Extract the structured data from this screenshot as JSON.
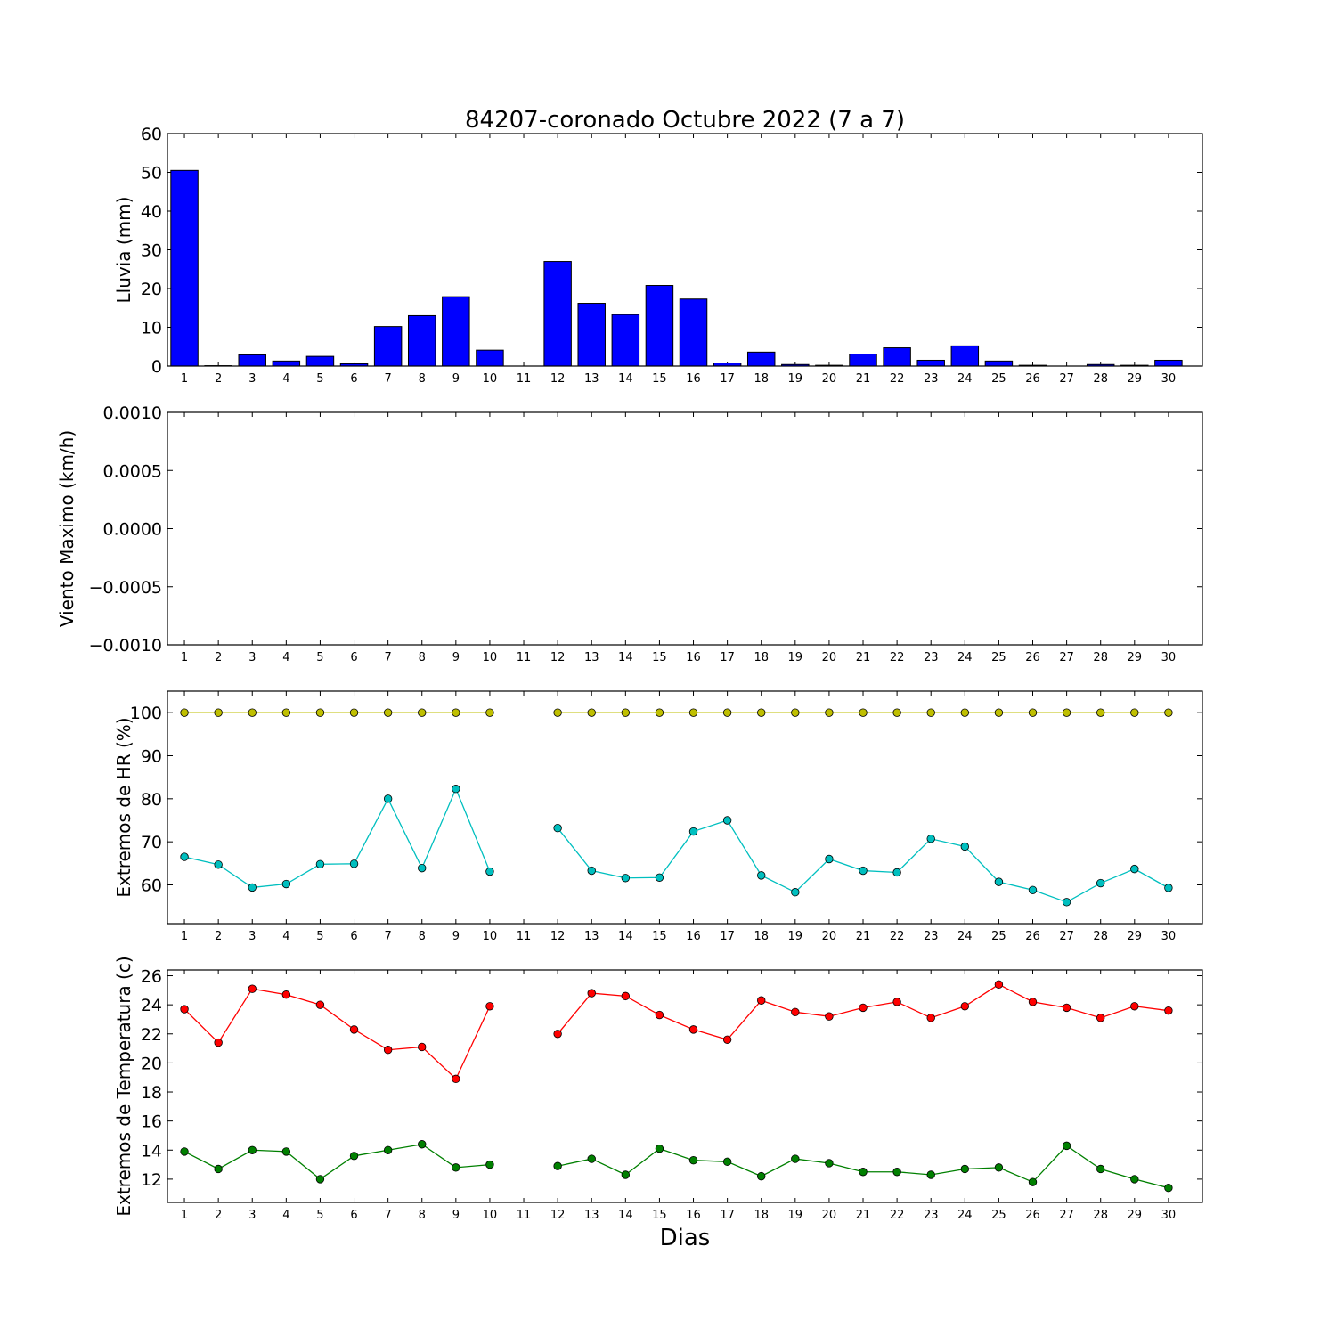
{
  "chart_data": {
    "title": "84207-coronado Octubre 2022  (7 a 7)",
    "xlabel": "Dias",
    "days": [
      1,
      2,
      3,
      4,
      5,
      6,
      7,
      8,
      9,
      10,
      11,
      12,
      13,
      14,
      15,
      16,
      17,
      18,
      19,
      20,
      21,
      22,
      23,
      24,
      25,
      26,
      27,
      28,
      29,
      30
    ],
    "panels": [
      {
        "id": "lluvia",
        "type": "bar",
        "ylabel": "Lluvia (mm)",
        "ylim": [
          0,
          60
        ],
        "yticks": [
          0,
          10,
          20,
          30,
          40,
          50,
          60
        ],
        "ytick_labels": [
          "0",
          "10",
          "20",
          "30",
          "40",
          "50",
          "60"
        ],
        "series": [
          {
            "color": "#0000ff",
            "values": [
              50.5,
              0.1,
              2.9,
              1.3,
              2.5,
              0.6,
              10.2,
              13.0,
              17.9,
              4.1,
              null,
              27.0,
              16.2,
              13.3,
              20.8,
              17.3,
              0.8,
              3.6,
              0.4,
              0.2,
              3.1,
              4.7,
              1.5,
              5.2,
              1.3,
              0.2,
              0.0,
              0.4,
              0.2,
              1.5
            ]
          }
        ]
      },
      {
        "id": "viento",
        "type": "line",
        "ylabel": "Viento Maximo (km/h)",
        "ylim": [
          -0.001,
          0.001
        ],
        "yticks": [
          -0.001,
          -0.0005,
          0,
          0.0005,
          0.001
        ],
        "ytick_labels": [
          "−0.0010",
          "−0.0005",
          "0.0000",
          "0.0005",
          "0.0010"
        ],
        "series": []
      },
      {
        "id": "hr",
        "type": "line",
        "ylabel": "Extremos de HR (%)",
        "ylim": [
          51,
          105
        ],
        "yticks": [
          60,
          70,
          80,
          90,
          100
        ],
        "ytick_labels": [
          "60",
          "70",
          "80",
          "90",
          "100"
        ],
        "series": [
          {
            "color": "#bfbf00",
            "values": [
              100,
              100,
              100,
              100,
              100,
              100,
              100,
              100,
              100,
              100,
              null,
              100,
              100,
              100,
              100,
              100,
              100,
              100,
              100,
              100,
              100,
              100,
              100,
              100,
              100,
              100,
              100,
              100,
              100,
              100
            ]
          },
          {
            "color": "#00bfbf",
            "values": [
              66.5,
              64.7,
              59.4,
              60.2,
              64.8,
              64.9,
              80.0,
              63.9,
              82.3,
              63.1,
              null,
              73.2,
              63.3,
              61.6,
              61.7,
              72.4,
              75.0,
              62.2,
              58.3,
              66.0,
              63.3,
              62.9,
              70.7,
              68.9,
              60.7,
              58.8,
              56.0,
              60.4,
              63.7,
              59.3
            ]
          }
        ]
      },
      {
        "id": "temp",
        "type": "line",
        "ylabel": "Extremos de Temperatura (c)",
        "ylim": [
          10.4,
          26.4
        ],
        "yticks": [
          12,
          14,
          16,
          18,
          20,
          22,
          24,
          26
        ],
        "ytick_labels": [
          "12",
          "14",
          "16",
          "18",
          "20",
          "22",
          "24",
          "26"
        ],
        "series": [
          {
            "color": "#ff0000",
            "values": [
              23.7,
              21.4,
              25.1,
              24.7,
              24.0,
              22.3,
              20.9,
              21.1,
              18.9,
              23.9,
              null,
              22.0,
              24.8,
              24.6,
              23.3,
              22.3,
              21.6,
              24.3,
              23.5,
              23.2,
              23.8,
              24.2,
              23.1,
              23.9,
              25.4,
              24.2,
              23.8,
              23.1,
              23.9,
              23.6
            ]
          },
          {
            "color": "#008000",
            "values": [
              13.9,
              12.7,
              14.0,
              13.9,
              12.0,
              13.6,
              14.0,
              14.4,
              12.8,
              13.0,
              null,
              12.9,
              13.4,
              12.3,
              14.1,
              13.3,
              13.2,
              12.2,
              13.4,
              13.1,
              12.5,
              12.5,
              12.3,
              12.7,
              12.8,
              11.8,
              14.3,
              12.7,
              12.0,
              11.4
            ]
          }
        ]
      }
    ]
  }
}
